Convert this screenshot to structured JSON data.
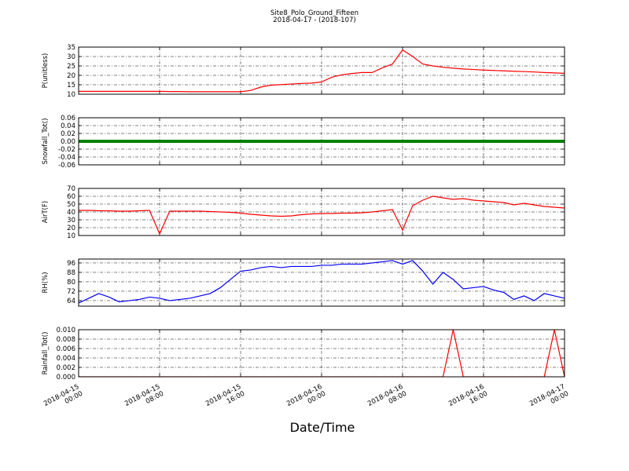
{
  "header": {
    "title": "Site8_Polo_Ground_Fifteen",
    "subtitle": "2018-04-17 - (2018-107)"
  },
  "xlabel": "Date/Time",
  "chart_data": [
    {
      "type": "line",
      "ylabel": "P(unitless)",
      "color": "#ff0000",
      "grid": true,
      "xlim": [
        "2018-04-15 00:00",
        "2018-04-17 00:00"
      ],
      "xticks": [
        "2018-04-15 00:00",
        "2018-04-15 08:00",
        "2018-04-15 16:00",
        "2018-04-16 00:00",
        "2018-04-16 08:00",
        "2018-04-16 16:00",
        "2018-04-17 00:00"
      ],
      "ylim": [
        10,
        35
      ],
      "yticks": [
        10,
        15,
        20,
        25,
        30,
        35
      ],
      "x": [
        "2018-04-15 00:00",
        "2018-04-15 01:00",
        "2018-04-15 02:00",
        "2018-04-15 03:00",
        "2018-04-15 04:00",
        "2018-04-15 05:00",
        "2018-04-15 06:00",
        "2018-04-15 07:00",
        "2018-04-15 08:00",
        "2018-04-15 09:00",
        "2018-04-15 10:00",
        "2018-04-15 11:00",
        "2018-04-15 12:00",
        "2018-04-15 13:00",
        "2018-04-15 14:00",
        "2018-04-15 15:00",
        "2018-04-15 16:00",
        "2018-04-15 17:00",
        "2018-04-15 18:00",
        "2018-04-15 19:00",
        "2018-04-15 20:00",
        "2018-04-15 21:00",
        "2018-04-15 22:00",
        "2018-04-15 23:00",
        "2018-04-16 00:00",
        "2018-04-16 01:00",
        "2018-04-16 02:00",
        "2018-04-16 03:00",
        "2018-04-16 04:00",
        "2018-04-16 05:00",
        "2018-04-16 06:00",
        "2018-04-16 07:00",
        "2018-04-16 08:00",
        "2018-04-16 09:00",
        "2018-04-16 10:00",
        "2018-04-16 11:00",
        "2018-04-16 12:00",
        "2018-04-16 13:00",
        "2018-04-16 14:00",
        "2018-04-16 15:00",
        "2018-04-16 16:00",
        "2018-04-16 17:00",
        "2018-04-16 18:00",
        "2018-04-16 19:00",
        "2018-04-16 20:00",
        "2018-04-16 21:00",
        "2018-04-16 22:00",
        "2018-04-16 23:00",
        "2018-04-17 00:00"
      ],
      "values": [
        11.5,
        11.5,
        11.5,
        11.5,
        11.5,
        11.5,
        11.5,
        11.5,
        11.5,
        11.4,
        11.4,
        11.3,
        11.3,
        11.3,
        11.3,
        11.3,
        11.3,
        12,
        13.8,
        14.8,
        15.1,
        15.4,
        15.7,
        15.9,
        16.5,
        19,
        20.3,
        21,
        21.5,
        21.5,
        24,
        26,
        33.5,
        30,
        26,
        25,
        24.3,
        23.8,
        23.4,
        23.1,
        22.8,
        22.6,
        22.4,
        22.2,
        22,
        21.8,
        21.5,
        21.3,
        21.1
      ]
    },
    {
      "type": "line",
      "ylabel": "Snowfall_Tot()",
      "color": "#008000",
      "grid": true,
      "xlim": [
        "2018-04-15 00:00",
        "2018-04-17 00:00"
      ],
      "xticks": [
        "2018-04-15 00:00",
        "2018-04-15 08:00",
        "2018-04-15 16:00",
        "2018-04-16 00:00",
        "2018-04-16 08:00",
        "2018-04-16 16:00",
        "2018-04-17 00:00"
      ],
      "ylim": [
        -0.06,
        0.06
      ],
      "yticks": [
        -0.06,
        -0.04,
        -0.02,
        {
          "value": 0,
          "label": "0.00"
        },
        0.02,
        0.04,
        0.06
      ],
      "x": [
        "2018-04-15 00:00",
        "2018-04-15 01:00",
        "2018-04-15 02:00",
        "2018-04-15 03:00",
        "2018-04-15 04:00",
        "2018-04-15 05:00",
        "2018-04-15 06:00",
        "2018-04-15 07:00",
        "2018-04-15 08:00",
        "2018-04-15 09:00",
        "2018-04-15 10:00",
        "2018-04-15 11:00",
        "2018-04-15 12:00",
        "2018-04-15 13:00",
        "2018-04-15 14:00",
        "2018-04-15 15:00",
        "2018-04-15 16:00",
        "2018-04-15 17:00",
        "2018-04-15 18:00",
        "2018-04-15 19:00",
        "2018-04-15 20:00",
        "2018-04-15 21:00",
        "2018-04-15 22:00",
        "2018-04-15 23:00",
        "2018-04-16 00:00",
        "2018-04-16 01:00",
        "2018-04-16 02:00",
        "2018-04-16 03:00",
        "2018-04-16 04:00",
        "2018-04-16 05:00",
        "2018-04-16 06:00",
        "2018-04-16 07:00",
        "2018-04-16 08:00",
        "2018-04-16 09:00",
        "2018-04-16 10:00",
        "2018-04-16 11:00",
        "2018-04-16 12:00",
        "2018-04-16 13:00",
        "2018-04-16 14:00",
        "2018-04-16 15:00",
        "2018-04-16 16:00",
        "2018-04-16 17:00",
        "2018-04-16 18:00",
        "2018-04-16 19:00",
        "2018-04-16 20:00",
        "2018-04-16 21:00",
        "2018-04-16 22:00",
        "2018-04-16 23:00",
        "2018-04-17 00:00"
      ],
      "values": [
        0,
        0,
        0,
        0,
        0,
        0,
        0,
        0,
        0,
        0,
        0,
        0,
        0,
        0,
        0,
        0,
        0,
        0,
        0,
        0,
        0,
        0,
        0,
        0,
        0,
        0,
        0,
        0,
        0,
        0,
        0,
        0,
        0,
        0,
        0,
        0,
        0,
        0,
        0,
        0,
        0,
        0,
        0,
        0,
        0,
        0,
        0,
        0,
        0
      ]
    },
    {
      "type": "line",
      "ylabel": "AirT(F)",
      "color": "#ff0000",
      "grid": true,
      "xlim": [
        "2018-04-15 00:00",
        "2018-04-17 00:00"
      ],
      "xticks": [
        "2018-04-15 00:00",
        "2018-04-15 08:00",
        "2018-04-15 16:00",
        "2018-04-16 00:00",
        "2018-04-16 08:00",
        "2018-04-16 16:00",
        "2018-04-17 00:00"
      ],
      "ylim": [
        10,
        70
      ],
      "yticks": [
        10,
        20,
        30,
        40,
        50,
        60,
        70
      ],
      "x": [
        "2018-04-15 00:00",
        "2018-04-15 01:00",
        "2018-04-15 02:00",
        "2018-04-15 03:00",
        "2018-04-15 04:00",
        "2018-04-15 05:00",
        "2018-04-15 06:00",
        "2018-04-15 07:00",
        "2018-04-15 08:00",
        "2018-04-15 09:00",
        "2018-04-15 10:00",
        "2018-04-15 11:00",
        "2018-04-15 12:00",
        "2018-04-15 13:00",
        "2018-04-15 14:00",
        "2018-04-15 15:00",
        "2018-04-15 16:00",
        "2018-04-15 17:00",
        "2018-04-15 18:00",
        "2018-04-15 19:00",
        "2018-04-15 20:00",
        "2018-04-15 21:00",
        "2018-04-15 22:00",
        "2018-04-15 23:00",
        "2018-04-16 00:00",
        "2018-04-16 01:00",
        "2018-04-16 02:00",
        "2018-04-16 03:00",
        "2018-04-16 04:00",
        "2018-04-16 05:00",
        "2018-04-16 06:00",
        "2018-04-16 07:00",
        "2018-04-16 08:00",
        "2018-04-16 09:00",
        "2018-04-16 10:00",
        "2018-04-16 11:00",
        "2018-04-16 12:00",
        "2018-04-16 13:00",
        "2018-04-16 14:00",
        "2018-04-16 15:00",
        "2018-04-16 16:00",
        "2018-04-16 17:00",
        "2018-04-16 18:00",
        "2018-04-16 19:00",
        "2018-04-16 20:00",
        "2018-04-16 21:00",
        "2018-04-16 22:00",
        "2018-04-16 23:00",
        "2018-04-17 00:00"
      ],
      "values": [
        42,
        42,
        41.5,
        41.5,
        41,
        41,
        41.5,
        42,
        12,
        41,
        41,
        41,
        41,
        40.5,
        40,
        39.5,
        38.5,
        37,
        36,
        35,
        34.5,
        35,
        36.5,
        37.5,
        38,
        38,
        38.5,
        38.5,
        39,
        40,
        41.5,
        43,
        17,
        48,
        55,
        60,
        58,
        56,
        57,
        55,
        54,
        53,
        52,
        49,
        51,
        49,
        47,
        46,
        45
      ]
    },
    {
      "type": "line",
      "ylabel": "RH(%)",
      "color": "#0000ff",
      "grid": true,
      "xlim": [
        "2018-04-15 00:00",
        "2018-04-17 00:00"
      ],
      "xticks": [
        "2018-04-15 00:00",
        "2018-04-15 08:00",
        "2018-04-15 16:00",
        "2018-04-16 00:00",
        "2018-04-16 08:00",
        "2018-04-16 16:00",
        "2018-04-17 00:00"
      ],
      "ylim": [
        59.3,
        99.3
      ],
      "yticks": [
        64,
        72,
        80,
        88,
        96
      ],
      "x": [
        "2018-04-15 00:00",
        "2018-04-15 01:00",
        "2018-04-15 02:00",
        "2018-04-15 03:00",
        "2018-04-15 04:00",
        "2018-04-15 05:00",
        "2018-04-15 06:00",
        "2018-04-15 07:00",
        "2018-04-15 08:00",
        "2018-04-15 09:00",
        "2018-04-15 10:00",
        "2018-04-15 11:00",
        "2018-04-15 12:00",
        "2018-04-15 13:00",
        "2018-04-15 14:00",
        "2018-04-15 15:00",
        "2018-04-15 16:00",
        "2018-04-15 17:00",
        "2018-04-15 18:00",
        "2018-04-15 19:00",
        "2018-04-15 20:00",
        "2018-04-15 21:00",
        "2018-04-15 22:00",
        "2018-04-15 23:00",
        "2018-04-16 00:00",
        "2018-04-16 01:00",
        "2018-04-16 02:00",
        "2018-04-16 03:00",
        "2018-04-16 04:00",
        "2018-04-16 05:00",
        "2018-04-16 06:00",
        "2018-04-16 07:00",
        "2018-04-16 08:00",
        "2018-04-16 09:00",
        "2018-04-16 10:00",
        "2018-04-16 11:00",
        "2018-04-16 12:00",
        "2018-04-16 13:00",
        "2018-04-16 14:00",
        "2018-04-16 15:00",
        "2018-04-16 16:00",
        "2018-04-16 17:00",
        "2018-04-16 18:00",
        "2018-04-16 19:00",
        "2018-04-16 20:00",
        "2018-04-16 21:00",
        "2018-04-16 22:00",
        "2018-04-16 23:00",
        "2018-04-17 00:00"
      ],
      "values": [
        62,
        66,
        70,
        67,
        63,
        64,
        65,
        67,
        66,
        64,
        65,
        66,
        68,
        70,
        75,
        82,
        89,
        90,
        92,
        93,
        92,
        93,
        93,
        93,
        94,
        94,
        95,
        95,
        95,
        96,
        97,
        98,
        95,
        98,
        89,
        78,
        88,
        82,
        74,
        75,
        76,
        73,
        71,
        65,
        68,
        64,
        70,
        68,
        66
      ]
    },
    {
      "type": "line",
      "ylabel": "Rainfall_Tot()",
      "color": "#ff0000",
      "grid": true,
      "xlim": [
        "2018-04-15 00:00",
        "2018-04-17 00:00"
      ],
      "xticks": [
        "2018-04-15 00:00",
        "2018-04-15 08:00",
        "2018-04-15 16:00",
        "2018-04-16 00:00",
        "2018-04-16 08:00",
        "2018-04-16 16:00",
        "2018-04-17 00:00"
      ],
      "ylim": [
        0,
        0.01
      ],
      "yticks": [
        {
          "value": 0,
          "label": "0.000"
        },
        {
          "value": 0.002,
          "label": "0.002"
        },
        {
          "value": 0.004,
          "label": "0.004"
        },
        {
          "value": 0.006,
          "label": "0.006"
        },
        {
          "value": 0.008,
          "label": "0.008"
        },
        {
          "value": 0.01,
          "label": "0.010"
        }
      ],
      "x": [
        "2018-04-15 00:00",
        "2018-04-15 01:00",
        "2018-04-15 02:00",
        "2018-04-15 03:00",
        "2018-04-15 04:00",
        "2018-04-15 05:00",
        "2018-04-15 06:00",
        "2018-04-15 07:00",
        "2018-04-15 08:00",
        "2018-04-15 09:00",
        "2018-04-15 10:00",
        "2018-04-15 11:00",
        "2018-04-15 12:00",
        "2018-04-15 13:00",
        "2018-04-15 14:00",
        "2018-04-15 15:00",
        "2018-04-15 16:00",
        "2018-04-15 17:00",
        "2018-04-15 18:00",
        "2018-04-15 19:00",
        "2018-04-15 20:00",
        "2018-04-15 21:00",
        "2018-04-15 22:00",
        "2018-04-15 23:00",
        "2018-04-16 00:00",
        "2018-04-16 01:00",
        "2018-04-16 02:00",
        "2018-04-16 03:00",
        "2018-04-16 04:00",
        "2018-04-16 05:00",
        "2018-04-16 06:00",
        "2018-04-16 07:00",
        "2018-04-16 08:00",
        "2018-04-16 09:00",
        "2018-04-16 10:00",
        "2018-04-16 11:00",
        "2018-04-16 12:00",
        "2018-04-16 13:00",
        "2018-04-16 14:00",
        "2018-04-16 15:00",
        "2018-04-16 16:00",
        "2018-04-16 17:00",
        "2018-04-16 18:00",
        "2018-04-16 19:00",
        "2018-04-16 20:00",
        "2018-04-16 21:00",
        "2018-04-16 22:00",
        "2018-04-16 23:00",
        "2018-04-17 00:00"
      ],
      "values": [
        0,
        0,
        0,
        0,
        0,
        0,
        0,
        0,
        0,
        0,
        0,
        0,
        0,
        0,
        0,
        0,
        0,
        0,
        0,
        0,
        0,
        0,
        0,
        0,
        0,
        0,
        0,
        0,
        0,
        0,
        0,
        0,
        0,
        0,
        0,
        0,
        0,
        0.01,
        0,
        0,
        0,
        0,
        0,
        0,
        0,
        0,
        0,
        0.01,
        0
      ]
    }
  ]
}
